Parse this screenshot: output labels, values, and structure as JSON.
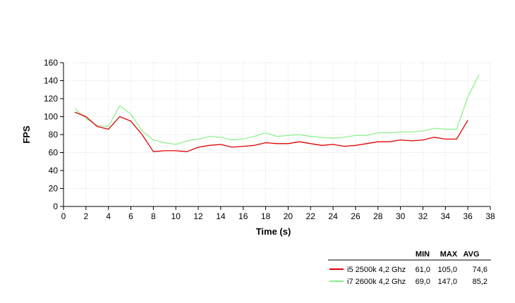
{
  "chart_data": {
    "type": "line",
    "xlabel": "Time (s)",
    "ylabel": "FPS",
    "xlim": [
      0,
      38
    ],
    "ylim": [
      0,
      160
    ],
    "xticks": [
      0,
      2,
      4,
      6,
      8,
      10,
      12,
      14,
      16,
      18,
      20,
      22,
      24,
      26,
      28,
      30,
      32,
      34,
      36,
      38
    ],
    "yticks": [
      0,
      20,
      40,
      60,
      80,
      100,
      120,
      140,
      160
    ],
    "grid": true,
    "legend": {
      "placement": "bottom-right",
      "headers": [
        "MIN",
        "MAX",
        "AVG"
      ]
    },
    "series": [
      {
        "name": "i5 2500k 4,2 Ghz",
        "color": "#e00000",
        "min": "61,0",
        "max": "105,0",
        "avg": "74,6",
        "points": [
          [
            1,
            105
          ],
          [
            2,
            100
          ],
          [
            3,
            89
          ],
          [
            4,
            86
          ],
          [
            5,
            100
          ],
          [
            6,
            95
          ],
          [
            7,
            80
          ],
          [
            8,
            61
          ],
          [
            9,
            62
          ],
          [
            10,
            62
          ],
          [
            11,
            61
          ],
          [
            12,
            66
          ],
          [
            13,
            68
          ],
          [
            14,
            69
          ],
          [
            15,
            66
          ],
          [
            16,
            67
          ],
          [
            17,
            68
          ],
          [
            18,
            71
          ],
          [
            19,
            70
          ],
          [
            20,
            70
          ],
          [
            21,
            72
          ],
          [
            22,
            70
          ],
          [
            23,
            68
          ],
          [
            24,
            69
          ],
          [
            25,
            67
          ],
          [
            26,
            68
          ],
          [
            27,
            70
          ],
          [
            28,
            72
          ],
          [
            29,
            72
          ],
          [
            30,
            74
          ],
          [
            31,
            73
          ],
          [
            32,
            74
          ],
          [
            33,
            77
          ],
          [
            34,
            75
          ],
          [
            35,
            75
          ],
          [
            36,
            96
          ]
        ]
      },
      {
        "name": "i7 2600k 4,2 Ghz",
        "color": "#88ee88",
        "min": "69,0",
        "max": "147,0",
        "avg": "85,2",
        "points": [
          [
            1,
            109
          ],
          [
            2,
            98
          ],
          [
            3,
            90
          ],
          [
            4,
            89
          ],
          [
            5,
            112
          ],
          [
            6,
            103
          ],
          [
            7,
            84
          ],
          [
            8,
            74
          ],
          [
            9,
            71
          ],
          [
            10,
            69
          ],
          [
            11,
            73
          ],
          [
            12,
            75
          ],
          [
            13,
            78
          ],
          [
            14,
            77
          ],
          [
            15,
            74
          ],
          [
            16,
            75
          ],
          [
            17,
            78
          ],
          [
            18,
            82
          ],
          [
            19,
            78
          ],
          [
            20,
            79
          ],
          [
            21,
            80
          ],
          [
            22,
            78
          ],
          [
            23,
            77
          ],
          [
            24,
            76
          ],
          [
            25,
            77
          ],
          [
            26,
            79
          ],
          [
            27,
            79
          ],
          [
            28,
            82
          ],
          [
            29,
            82
          ],
          [
            30,
            83
          ],
          [
            31,
            83
          ],
          [
            32,
            84
          ],
          [
            33,
            87
          ],
          [
            34,
            86
          ],
          [
            35,
            86
          ],
          [
            36,
            122
          ],
          [
            37,
            147
          ]
        ]
      }
    ]
  }
}
